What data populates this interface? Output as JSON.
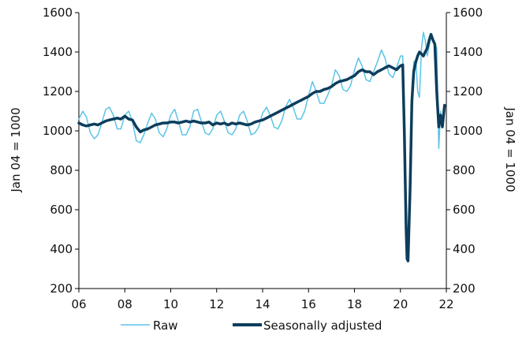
{
  "chart_data": {
    "type": "line",
    "xlabel": "",
    "ylabel_left": "Jan 04 = 1000",
    "ylabel_right": "Jan 04 = 1000",
    "x_ticks": [
      "06",
      "08",
      "10",
      "12",
      "14",
      "16",
      "18",
      "20",
      "22"
    ],
    "y_ticks": [
      "200",
      "400",
      "600",
      "800",
      "1000",
      "1200",
      "1400",
      "1600"
    ],
    "xlim": [
      2006,
      2022
    ],
    "ylim": [
      200,
      1600
    ],
    "grid": false,
    "legend_position": "bottom",
    "colors": {
      "raw": "#5bc4e6",
      "sa": "#0d3d5c",
      "axis": "#000000"
    },
    "series": [
      {
        "name": "Raw",
        "points": [
          [
            2006.0,
            1060
          ],
          [
            2006.17,
            1100
          ],
          [
            2006.33,
            1070
          ],
          [
            2006.5,
            990
          ],
          [
            2006.67,
            960
          ],
          [
            2006.83,
            980
          ],
          [
            2007.0,
            1040
          ],
          [
            2007.17,
            1110
          ],
          [
            2007.33,
            1120
          ],
          [
            2007.5,
            1080
          ],
          [
            2007.67,
            1010
          ],
          [
            2007.83,
            1010
          ],
          [
            2008.0,
            1080
          ],
          [
            2008.17,
            1100
          ],
          [
            2008.33,
            1050
          ],
          [
            2008.5,
            950
          ],
          [
            2008.67,
            940
          ],
          [
            2008.83,
            980
          ],
          [
            2009.0,
            1040
          ],
          [
            2009.17,
            1090
          ],
          [
            2009.33,
            1060
          ],
          [
            2009.5,
            990
          ],
          [
            2009.67,
            970
          ],
          [
            2009.83,
            1010
          ],
          [
            2010.0,
            1080
          ],
          [
            2010.17,
            1110
          ],
          [
            2010.33,
            1050
          ],
          [
            2010.5,
            980
          ],
          [
            2010.67,
            980
          ],
          [
            2010.83,
            1020
          ],
          [
            2011.0,
            1100
          ],
          [
            2011.17,
            1110
          ],
          [
            2011.33,
            1050
          ],
          [
            2011.5,
            990
          ],
          [
            2011.67,
            980
          ],
          [
            2011.83,
            1010
          ],
          [
            2012.0,
            1080
          ],
          [
            2012.17,
            1100
          ],
          [
            2012.33,
            1050
          ],
          [
            2012.5,
            990
          ],
          [
            2012.67,
            980
          ],
          [
            2012.83,
            1010
          ],
          [
            2013.0,
            1080
          ],
          [
            2013.17,
            1100
          ],
          [
            2013.33,
            1050
          ],
          [
            2013.5,
            980
          ],
          [
            2013.67,
            990
          ],
          [
            2013.83,
            1020
          ],
          [
            2014.0,
            1090
          ],
          [
            2014.17,
            1120
          ],
          [
            2014.33,
            1080
          ],
          [
            2014.5,
            1020
          ],
          [
            2014.67,
            1010
          ],
          [
            2014.83,
            1050
          ],
          [
            2015.0,
            1120
          ],
          [
            2015.17,
            1160
          ],
          [
            2015.33,
            1120
          ],
          [
            2015.5,
            1060
          ],
          [
            2015.67,
            1060
          ],
          [
            2015.83,
            1100
          ],
          [
            2016.0,
            1180
          ],
          [
            2016.17,
            1250
          ],
          [
            2016.33,
            1200
          ],
          [
            2016.5,
            1140
          ],
          [
            2016.67,
            1140
          ],
          [
            2016.83,
            1180
          ],
          [
            2017.0,
            1230
          ],
          [
            2017.17,
            1310
          ],
          [
            2017.33,
            1280
          ],
          [
            2017.5,
            1210
          ],
          [
            2017.67,
            1200
          ],
          [
            2017.83,
            1230
          ],
          [
            2018.0,
            1310
          ],
          [
            2018.17,
            1370
          ],
          [
            2018.33,
            1330
          ],
          [
            2018.5,
            1260
          ],
          [
            2018.67,
            1250
          ],
          [
            2018.83,
            1300
          ],
          [
            2019.0,
            1350
          ],
          [
            2019.17,
            1410
          ],
          [
            2019.33,
            1370
          ],
          [
            2019.5,
            1290
          ],
          [
            2019.67,
            1270
          ],
          [
            2019.83,
            1320
          ],
          [
            2020.0,
            1380
          ],
          [
            2020.1,
            1380
          ],
          [
            2020.17,
            1100
          ],
          [
            2020.25,
            600
          ],
          [
            2020.33,
            400
          ],
          [
            2020.42,
            700
          ],
          [
            2020.5,
            1150
          ],
          [
            2020.58,
            1350
          ],
          [
            2020.67,
            1360
          ],
          [
            2020.75,
            1200
          ],
          [
            2020.83,
            1170
          ],
          [
            2020.92,
            1420
          ],
          [
            2021.0,
            1500
          ],
          [
            2021.08,
            1460
          ],
          [
            2021.17,
            1380
          ],
          [
            2021.25,
            1430
          ],
          [
            2021.33,
            1480
          ],
          [
            2021.42,
            1460
          ],
          [
            2021.5,
            1440
          ],
          [
            2021.58,
            1420
          ],
          [
            2021.67,
            910
          ],
          [
            2021.75,
            1100
          ],
          [
            2021.83,
            1020
          ],
          [
            2021.92,
            1120
          ]
        ]
      },
      {
        "name": "Seasonally adjusted",
        "points": [
          [
            2006.0,
            1040
          ],
          [
            2006.17,
            1030
          ],
          [
            2006.33,
            1025
          ],
          [
            2006.5,
            1030
          ],
          [
            2006.67,
            1035
          ],
          [
            2006.83,
            1030
          ],
          [
            2007.0,
            1040
          ],
          [
            2007.17,
            1050
          ],
          [
            2007.33,
            1055
          ],
          [
            2007.5,
            1060
          ],
          [
            2007.67,
            1065
          ],
          [
            2007.83,
            1060
          ],
          [
            2008.0,
            1075
          ],
          [
            2008.17,
            1060
          ],
          [
            2008.33,
            1055
          ],
          [
            2008.5,
            1020
          ],
          [
            2008.67,
            995
          ],
          [
            2008.83,
            1005
          ],
          [
            2009.0,
            1010
          ],
          [
            2009.17,
            1020
          ],
          [
            2009.33,
            1030
          ],
          [
            2009.5,
            1035
          ],
          [
            2009.67,
            1040
          ],
          [
            2009.83,
            1040
          ],
          [
            2010.0,
            1045
          ],
          [
            2010.17,
            1045
          ],
          [
            2010.33,
            1040
          ],
          [
            2010.5,
            1045
          ],
          [
            2010.67,
            1050
          ],
          [
            2010.83,
            1045
          ],
          [
            2011.0,
            1050
          ],
          [
            2011.17,
            1045
          ],
          [
            2011.33,
            1040
          ],
          [
            2011.5,
            1040
          ],
          [
            2011.67,
            1045
          ],
          [
            2011.83,
            1030
          ],
          [
            2012.0,
            1040
          ],
          [
            2012.17,
            1035
          ],
          [
            2012.33,
            1040
          ],
          [
            2012.5,
            1030
          ],
          [
            2012.67,
            1040
          ],
          [
            2012.83,
            1035
          ],
          [
            2013.0,
            1040
          ],
          [
            2013.17,
            1035
          ],
          [
            2013.33,
            1030
          ],
          [
            2013.5,
            1035
          ],
          [
            2013.67,
            1045
          ],
          [
            2013.83,
            1050
          ],
          [
            2014.0,
            1055
          ],
          [
            2014.17,
            1065
          ],
          [
            2014.33,
            1075
          ],
          [
            2014.5,
            1085
          ],
          [
            2014.67,
            1095
          ],
          [
            2014.83,
            1105
          ],
          [
            2015.0,
            1115
          ],
          [
            2015.17,
            1125
          ],
          [
            2015.33,
            1135
          ],
          [
            2015.5,
            1145
          ],
          [
            2015.67,
            1155
          ],
          [
            2015.83,
            1165
          ],
          [
            2016.0,
            1175
          ],
          [
            2016.17,
            1190
          ],
          [
            2016.33,
            1200
          ],
          [
            2016.5,
            1200
          ],
          [
            2016.67,
            1210
          ],
          [
            2016.83,
            1215
          ],
          [
            2017.0,
            1225
          ],
          [
            2017.17,
            1240
          ],
          [
            2017.33,
            1250
          ],
          [
            2017.5,
            1255
          ],
          [
            2017.67,
            1260
          ],
          [
            2017.83,
            1270
          ],
          [
            2018.0,
            1280
          ],
          [
            2018.17,
            1300
          ],
          [
            2018.33,
            1310
          ],
          [
            2018.5,
            1300
          ],
          [
            2018.67,
            1300
          ],
          [
            2018.83,
            1285
          ],
          [
            2019.0,
            1300
          ],
          [
            2019.17,
            1310
          ],
          [
            2019.33,
            1320
          ],
          [
            2019.5,
            1330
          ],
          [
            2019.67,
            1320
          ],
          [
            2019.83,
            1310
          ],
          [
            2020.0,
            1330
          ],
          [
            2020.1,
            1335
          ],
          [
            2020.17,
            1000
          ],
          [
            2020.25,
            500
          ],
          [
            2020.29,
            350
          ],
          [
            2020.33,
            340
          ],
          [
            2020.42,
            700
          ],
          [
            2020.5,
            1150
          ],
          [
            2020.58,
            1300
          ],
          [
            2020.67,
            1350
          ],
          [
            2020.75,
            1380
          ],
          [
            2020.83,
            1400
          ],
          [
            2020.92,
            1390
          ],
          [
            2021.0,
            1380
          ],
          [
            2021.08,
            1400
          ],
          [
            2021.17,
            1420
          ],
          [
            2021.25,
            1460
          ],
          [
            2021.33,
            1490
          ],
          [
            2021.42,
            1460
          ],
          [
            2021.5,
            1440
          ],
          [
            2021.58,
            1200
          ],
          [
            2021.67,
            1020
          ],
          [
            2021.75,
            1080
          ],
          [
            2021.83,
            1020
          ],
          [
            2021.92,
            1130
          ]
        ]
      }
    ]
  }
}
